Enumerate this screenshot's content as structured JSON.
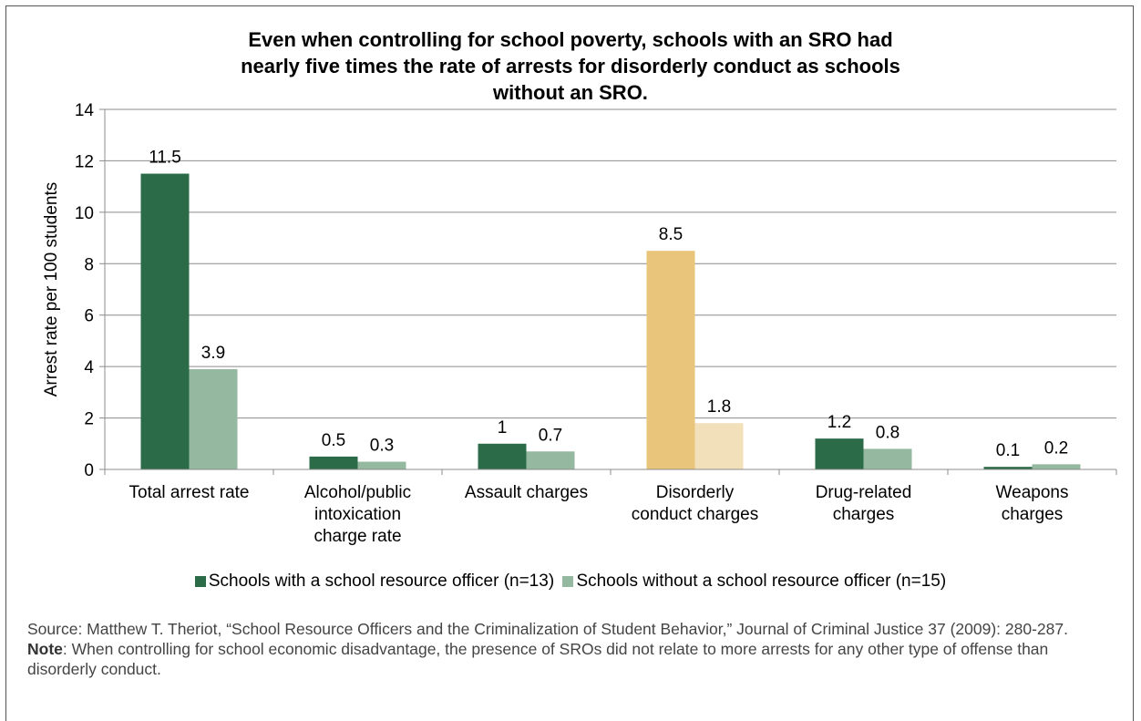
{
  "chart_data": {
    "type": "bar",
    "title_lines": [
      "Even when controlling for school poverty, schools with an SRO had",
      "nearly five times the rate of arrests for disorderly conduct as schools",
      "without an SRO."
    ],
    "ylabel": "Arrest rate per 100 students",
    "xlabel": "",
    "ylim": [
      0,
      14
    ],
    "yticks": [
      "0",
      "2",
      "4",
      "6",
      "8",
      "10",
      "12",
      "14"
    ],
    "grid": true,
    "legend_position": "bottom",
    "categories": [
      [
        "Total arrest rate"
      ],
      [
        "Alcohol/public",
        "intoxication",
        "charge rate"
      ],
      [
        "Assault charges"
      ],
      [
        "Disorderly",
        "conduct charges"
      ],
      [
        "Drug-related",
        "charges"
      ],
      [
        "Weapons",
        "charges"
      ]
    ],
    "series": [
      {
        "name": "Schools with a school resource officer (n=13)",
        "color": "#2b6b48",
        "values": [
          11.5,
          0.5,
          1,
          8.5,
          1.2,
          0.1
        ],
        "labels": [
          "11.5",
          "0.5",
          "1",
          "8.5",
          "1.2",
          "0.1"
        ]
      },
      {
        "name": "Schools without a school resource officer (n=15)",
        "color": "#95b8a1",
        "values": [
          3.9,
          0.3,
          0.7,
          1.8,
          0.8,
          0.2
        ],
        "labels": [
          "3.9",
          "0.3",
          "0.7",
          "1.8",
          "0.8",
          "0.2"
        ]
      }
    ],
    "highlight": {
      "category_index": 3,
      "colors": [
        "#e8c57a",
        "#f2e0bb"
      ]
    }
  },
  "notes": {
    "source": "Source: Matthew T. Theriot, “School Resource Officers and the Criminalization of Student Behavior,” Journal of Criminal Justice 37 (2009): 280-287.",
    "note_label": "Note",
    "note_text": ": When controlling for school economic disadvantage, the presence of SROs did not relate to more arrests for any other type of offense than disorderly conduct."
  }
}
